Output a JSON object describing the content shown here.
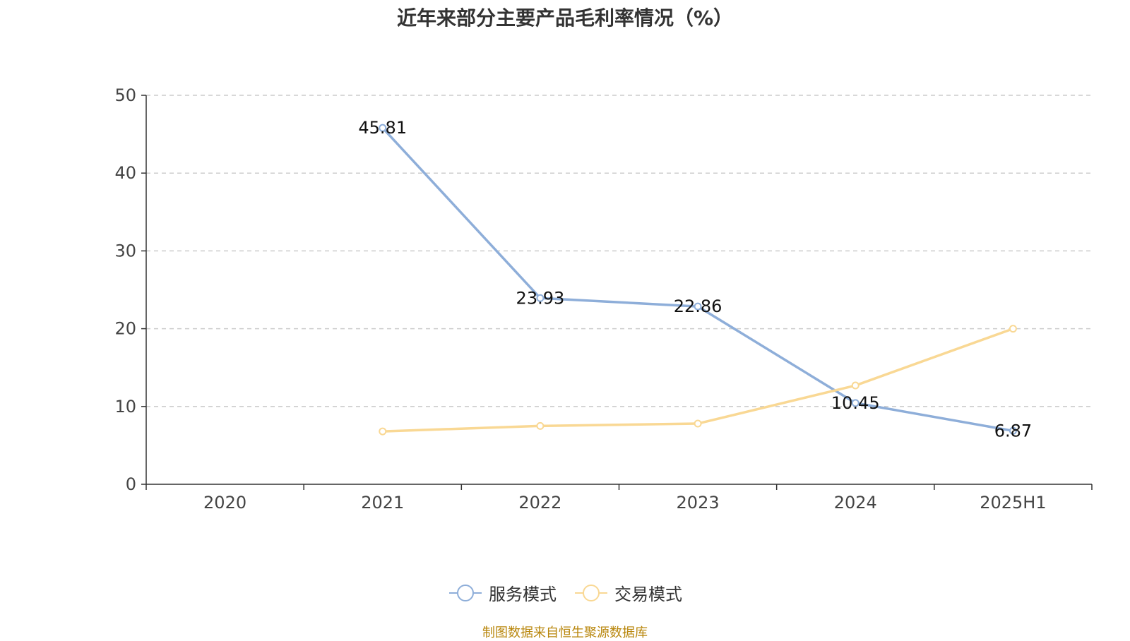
{
  "chart_data": {
    "type": "line",
    "title": "近年来部分主要产品毛利率情况（%）",
    "categories": [
      "2020",
      "2021",
      "2022",
      "2023",
      "2024",
      "2025H1"
    ],
    "ylim": [
      0,
      50
    ],
    "yticks": [
      0,
      10,
      20,
      30,
      40,
      50
    ],
    "grid": true,
    "legend_position": "bottom",
    "series": [
      {
        "name": "服务模式",
        "color": "#8eaed9",
        "values": [
          null,
          45.81,
          23.93,
          22.86,
          10.45,
          6.87
        ],
        "labels": [
          "",
          "45.81",
          "23.93",
          "22.86",
          "10.45",
          "6.87"
        ]
      },
      {
        "name": "交易模式",
        "color": "#f9d894",
        "values": [
          null,
          6.8,
          7.5,
          7.8,
          12.7,
          20.0
        ],
        "labels": [
          "",
          "",
          "",
          "",
          "",
          ""
        ]
      }
    ]
  },
  "source": "制图数据来自恒生聚源数据库"
}
